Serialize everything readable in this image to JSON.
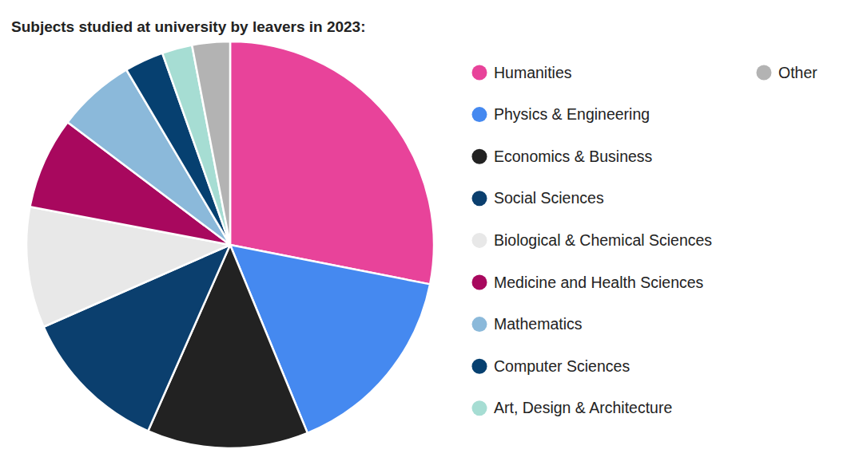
{
  "chart_data": {
    "type": "pie",
    "title": "Subjects studied at university by leavers in 2023:",
    "categories": [
      "Humanities",
      "Physics & Engineering",
      "Economics & Business",
      "Social Sciences",
      "Biological & Chemical Sciences",
      "Medicine and Health Sciences",
      "Mathematics",
      "Computer Sciences",
      "Art, Design & Architecture",
      "Other"
    ],
    "values": [
      28.1,
      15.7,
      12.8,
      11.8,
      9.6,
      7.3,
      6.2,
      3.1,
      2.4,
      3.0
    ],
    "colors": [
      "#e8439a",
      "#4589f0",
      "#222222",
      "#0b3f6e",
      "#e8e8e8",
      "#a8085e",
      "#8bb9da",
      "#064070",
      "#a6ddd3",
      "#b3b3b3"
    ],
    "legend": "right",
    "data_labels": false
  }
}
